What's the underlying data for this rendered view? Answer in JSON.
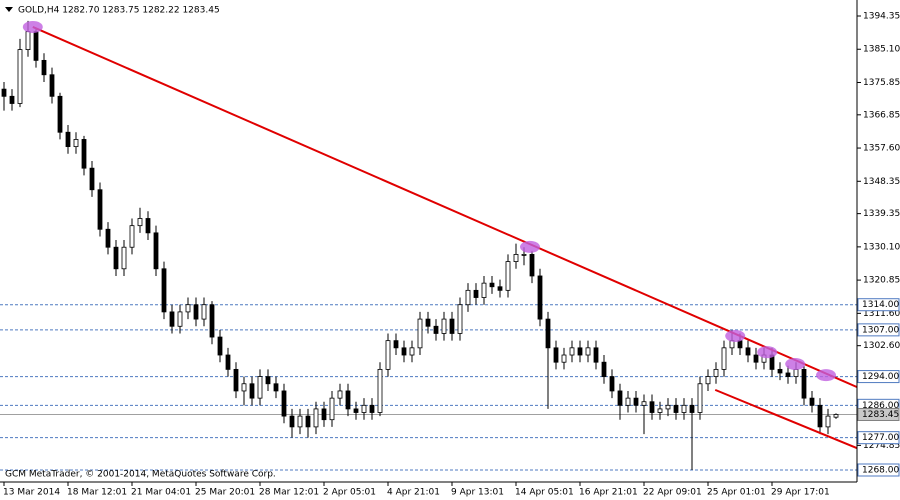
{
  "chart_data": {
    "type": "candlestick",
    "header": "GOLD,H4  1282.70 1283.75 1282.22 1283.45",
    "footer": "GCM MetaTrader, © 2001-2014, MetaQuotes Software Corp.",
    "categories": [
      "13 Mar 2014",
      null,
      null,
      null,
      null,
      null,
      null,
      null,
      "18 Mar 12:01",
      null,
      null,
      null,
      null,
      null,
      null,
      null,
      "21 Mar 04:01",
      null,
      null,
      null,
      null,
      null,
      null,
      null,
      "25 Mar 20:01",
      null,
      null,
      null,
      null,
      null,
      null,
      null,
      "28 Mar 12:01",
      null,
      null,
      null,
      null,
      null,
      null,
      null,
      "2 Apr 05:01",
      null,
      null,
      null,
      null,
      null,
      null,
      null,
      "4 Apr 21:01",
      null,
      null,
      null,
      null,
      null,
      null,
      null,
      "9 Apr 13:01",
      null,
      null,
      null,
      null,
      null,
      null,
      null,
      "14 Apr 05:01",
      null,
      null,
      null,
      null,
      null,
      null,
      null,
      "16 Apr 21:01",
      null,
      null,
      null,
      null,
      null,
      null,
      null,
      "22 Apr 09:01",
      null,
      null,
      null,
      null,
      null,
      null,
      null,
      "25 Apr 01:01",
      null,
      null,
      null,
      null,
      null,
      null,
      null,
      "29 Apr 17:01",
      null,
      null,
      null,
      null,
      null,
      null,
      null,
      null
    ],
    "ohlc": [
      [
        1374,
        1376,
        1368,
        1372
      ],
      [
        1372,
        1374,
        1368,
        1370
      ],
      [
        1370,
        1388,
        1369,
        1385
      ],
      [
        1385,
        1393,
        1383,
        1390
      ],
      [
        1390,
        1391,
        1380,
        1382
      ],
      [
        1382,
        1384,
        1376,
        1378
      ],
      [
        1378,
        1380,
        1370,
        1372
      ],
      [
        1372,
        1373,
        1360,
        1362
      ],
      [
        1362,
        1364,
        1356,
        1358
      ],
      [
        1358,
        1362,
        1356,
        1360
      ],
      [
        1360,
        1361,
        1350,
        1352
      ],
      [
        1352,
        1354,
        1344,
        1346
      ],
      [
        1346,
        1348,
        1333,
        1335
      ],
      [
        1335,
        1337,
        1328,
        1330
      ],
      [
        1330,
        1332,
        1322,
        1324
      ],
      [
        1324,
        1332,
        1322,
        1330
      ],
      [
        1330,
        1338,
        1328,
        1336
      ],
      [
        1336,
        1341,
        1334,
        1338
      ],
      [
        1338,
        1340,
        1332,
        1334
      ],
      [
        1334,
        1336,
        1322,
        1324
      ],
      [
        1324,
        1326,
        1310,
        1312
      ],
      [
        1312,
        1314,
        1306,
        1308
      ],
      [
        1308,
        1314,
        1306,
        1312
      ],
      [
        1312,
        1316,
        1310,
        1314
      ],
      [
        1314,
        1316,
        1308,
        1310
      ],
      [
        1310,
        1316,
        1308,
        1314
      ],
      [
        1314,
        1315,
        1303,
        1305
      ],
      [
        1305,
        1307,
        1298,
        1300
      ],
      [
        1300,
        1302,
        1294,
        1296
      ],
      [
        1296,
        1298,
        1288,
        1290
      ],
      [
        1290,
        1294,
        1286,
        1292
      ],
      [
        1292,
        1294,
        1286,
        1288
      ],
      [
        1288,
        1296,
        1286,
        1294
      ],
      [
        1294,
        1296,
        1290,
        1292
      ],
      [
        1292,
        1294,
        1288,
        1290
      ],
      [
        1290,
        1292,
        1281,
        1283
      ],
      [
        1283,
        1285,
        1277,
        1280
      ],
      [
        1280,
        1285,
        1278,
        1283
      ],
      [
        1283,
        1285,
        1277,
        1280
      ],
      [
        1280,
        1287,
        1278,
        1285
      ],
      [
        1285,
        1287,
        1280,
        1282
      ],
      [
        1282,
        1290,
        1280,
        1288
      ],
      [
        1288,
        1292,
        1286,
        1290
      ],
      [
        1290,
        1292,
        1283,
        1285
      ],
      [
        1285,
        1287,
        1282,
        1284
      ],
      [
        1284,
        1288,
        1282,
        1286
      ],
      [
        1286,
        1288,
        1282,
        1284
      ],
      [
        1284,
        1298,
        1283,
        1296
      ],
      [
        1296,
        1306,
        1294,
        1304
      ],
      [
        1304,
        1306,
        1300,
        1302
      ],
      [
        1302,
        1304,
        1298,
        1300
      ],
      [
        1300,
        1304,
        1298,
        1302
      ],
      [
        1302,
        1312,
        1300,
        1310
      ],
      [
        1310,
        1312,
        1306,
        1308
      ],
      [
        1308,
        1310,
        1304,
        1306
      ],
      [
        1306,
        1312,
        1304,
        1310
      ],
      [
        1310,
        1312,
        1304,
        1306
      ],
      [
        1306,
        1316,
        1304,
        1314
      ],
      [
        1314,
        1320,
        1312,
        1318
      ],
      [
        1318,
        1320,
        1314,
        1316
      ],
      [
        1316,
        1322,
        1314,
        1320
      ],
      [
        1320,
        1322,
        1317,
        1319
      ],
      [
        1319,
        1321,
        1316,
        1318
      ],
      [
        1318,
        1328,
        1316,
        1326
      ],
      [
        1326,
        1331,
        1324,
        1328
      ],
      [
        1328,
        1330,
        1325,
        1328
      ],
      [
        1328,
        1329,
        1320,
        1322
      ],
      [
        1322,
        1324,
        1308,
        1310
      ],
      [
        1310,
        1312,
        1285,
        1302
      ],
      [
        1302,
        1304,
        1296,
        1298
      ],
      [
        1298,
        1302,
        1296,
        1300
      ],
      [
        1300,
        1304,
        1298,
        1302
      ],
      [
        1302,
        1304,
        1298,
        1300
      ],
      [
        1300,
        1304,
        1298,
        1302
      ],
      [
        1302,
        1304,
        1296,
        1298
      ],
      [
        1298,
        1300,
        1292,
        1294
      ],
      [
        1294,
        1296,
        1288,
        1290
      ],
      [
        1290,
        1292,
        1282,
        1286
      ],
      [
        1286,
        1290,
        1284,
        1288
      ],
      [
        1288,
        1290,
        1284,
        1286
      ],
      [
        1286,
        1289,
        1278,
        1287
      ],
      [
        1287,
        1289,
        1282,
        1284
      ],
      [
        1284,
        1287,
        1282,
        1285
      ],
      [
        1285,
        1288,
        1283,
        1286
      ],
      [
        1286,
        1288,
        1282,
        1284
      ],
      [
        1284,
        1288,
        1282,
        1286
      ],
      [
        1286,
        1288,
        1268,
        1284
      ],
      [
        1284,
        1294,
        1282,
        1292
      ],
      [
        1292,
        1296,
        1290,
        1294
      ],
      [
        1294,
        1298,
        1292,
        1296
      ],
      [
        1296,
        1304,
        1294,
        1302
      ],
      [
        1302,
        1307,
        1300,
        1304
      ],
      [
        1304,
        1306,
        1300,
        1302
      ],
      [
        1302,
        1304,
        1298,
        1300
      ],
      [
        1300,
        1302,
        1296,
        1298
      ],
      [
        1298,
        1302,
        1296,
        1300
      ],
      [
        1300,
        1302,
        1294,
        1296
      ],
      [
        1296,
        1298,
        1293,
        1295
      ],
      [
        1295,
        1297,
        1292,
        1294
      ],
      [
        1294,
        1298,
        1292,
        1296
      ],
      [
        1296,
        1297,
        1286,
        1288
      ],
      [
        1288,
        1290,
        1284,
        1286
      ],
      [
        1286,
        1288,
        1278,
        1280
      ],
      [
        1280,
        1285,
        1278,
        1283
      ],
      [
        1282.7,
        1283.75,
        1282.22,
        1283.45
      ]
    ],
    "ylim": [
      1264.66,
      1397.97
    ],
    "yticks": [
      {
        "value": 1394.35,
        "label": "1394.35"
      },
      {
        "value": 1385.1,
        "label": "1385.10"
      },
      {
        "value": 1375.85,
        "label": "1375.85"
      },
      {
        "value": 1366.85,
        "label": "1366.85"
      },
      {
        "value": 1357.6,
        "label": "1357.60"
      },
      {
        "value": 1348.35,
        "label": "1348.35"
      },
      {
        "value": 1339.35,
        "label": "1339.35"
      },
      {
        "value": 1330.1,
        "label": "1330.10"
      },
      {
        "value": 1320.85,
        "label": "1320.85"
      },
      {
        "value": 1311.6,
        "label": "1311.60"
      },
      {
        "value": 1302.6,
        "label": "1302.60"
      },
      {
        "value": 1274.85,
        "label": "1274.85"
      }
    ],
    "levels": [
      {
        "value": 1314,
        "label": "1314.00"
      },
      {
        "value": 1307,
        "label": "1307.00"
      },
      {
        "value": 1294,
        "label": "1294.00"
      },
      {
        "value": 1286,
        "label": "1286.00"
      },
      {
        "value": 1277,
        "label": "1277.00"
      },
      {
        "value": 1268,
        "label": "1268.00"
      }
    ],
    "level_color": "#4f7ac0",
    "price_line": {
      "value": 1283.45,
      "label": "1283.45"
    },
    "trendline_color": "#e00000",
    "trendlines": [
      [
        [
          3.6,
          1391.3
        ],
        [
          106.6,
          1291.1
        ]
      ],
      [
        [
          88.9,
          1290.3
        ],
        [
          106.6,
          1274.1
        ]
      ]
    ],
    "marker_color": "#c060e0",
    "markers": [
      [
        3.6,
        1391.3
      ],
      [
        65.75,
        1330.1
      ],
      [
        91.4,
        1305.3
      ],
      [
        95.4,
        1300.8
      ],
      [
        98.9,
        1297.5
      ],
      [
        102.75,
        1294.4
      ]
    ]
  }
}
